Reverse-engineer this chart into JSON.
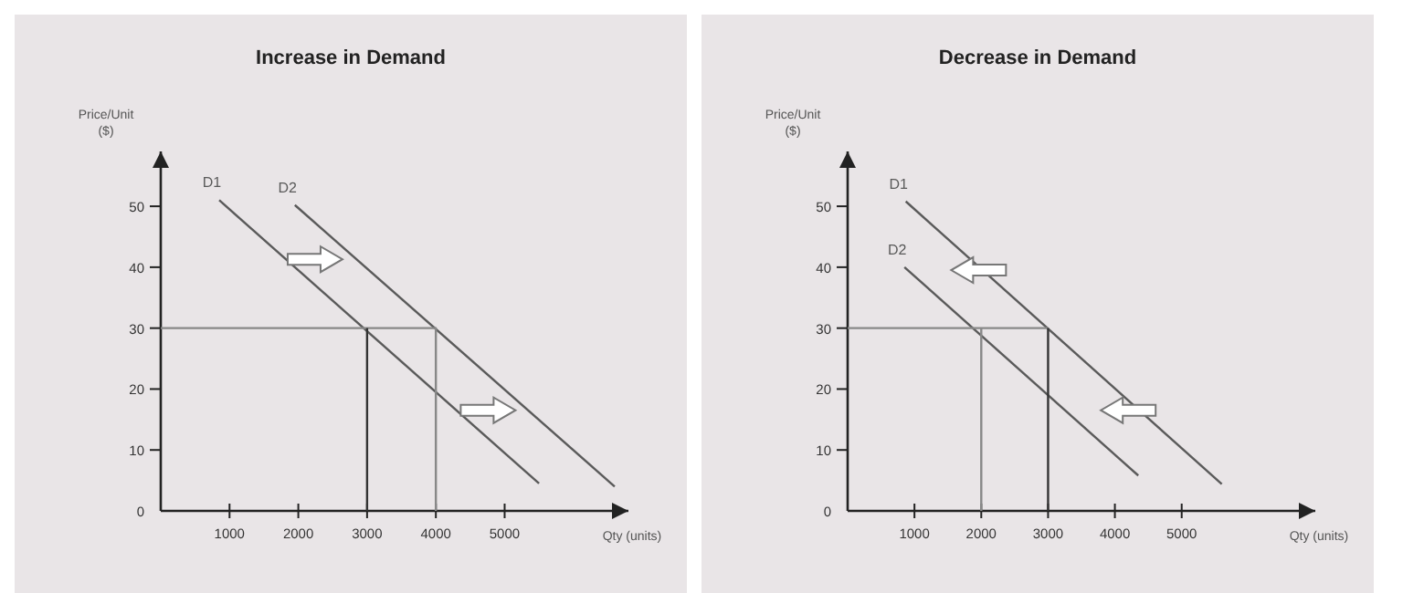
{
  "chart_data": [
    {
      "type": "line",
      "title": "Increase in Demand",
      "xlabel": "Qty (units)",
      "ylabel": "Price/Unit ($)",
      "xlim": [
        0,
        6800
      ],
      "ylim": [
        0,
        59
      ],
      "xticks": [
        1000,
        2000,
        3000,
        4000,
        5000
      ],
      "yticks": [
        0,
        10,
        20,
        30,
        40,
        50
      ],
      "grid": false,
      "legend": false,
      "marker": "none",
      "series": [
        {
          "name": "D1",
          "color": "#5a5a5a",
          "x": [
            850,
            5500
          ],
          "values": [
            51,
            4.5
          ]
        },
        {
          "name": "D2",
          "color": "#5a5a5a",
          "x": [
            1950,
            6600
          ],
          "values": [
            50.2,
            4
          ]
        },
        {
          "color": "#888888",
          "x": [
            0,
            4000,
            4000
          ],
          "values": [
            30,
            30,
            0
          ]
        },
        {
          "color": "#333333",
          "x": [
            3000,
            3000
          ],
          "values": [
            30,
            0
          ]
        }
      ]
    },
    {
      "type": "line",
      "title": "Decrease in Demand",
      "xlabel": "Qty (units)",
      "ylabel": "Price/Unit ($)",
      "xlim": [
        0,
        7000
      ],
      "ylim": [
        0,
        59
      ],
      "xticks": [
        1000,
        2000,
        3000,
        4000,
        5000
      ],
      "yticks": [
        0,
        10,
        20,
        30,
        40,
        50
      ],
      "grid": false,
      "legend": false,
      "marker": "none",
      "series": [
        {
          "name": "D1",
          "color": "#5a5a5a",
          "x": [
            870,
            5600
          ],
          "values": [
            50.8,
            4.4
          ]
        },
        {
          "name": "D2",
          "color": "#5a5a5a",
          "x": [
            850,
            4350
          ],
          "values": [
            40,
            5.8
          ]
        },
        {
          "color": "#888888",
          "x": [
            0,
            3000
          ],
          "values": [
            30,
            30
          ]
        },
        {
          "color": "#888888",
          "x": [
            2000,
            2000
          ],
          "values": [
            30,
            0
          ]
        },
        {
          "color": "#333333",
          "x": [
            3000,
            3000
          ],
          "values": [
            30,
            0
          ]
        }
      ]
    }
  ]
}
